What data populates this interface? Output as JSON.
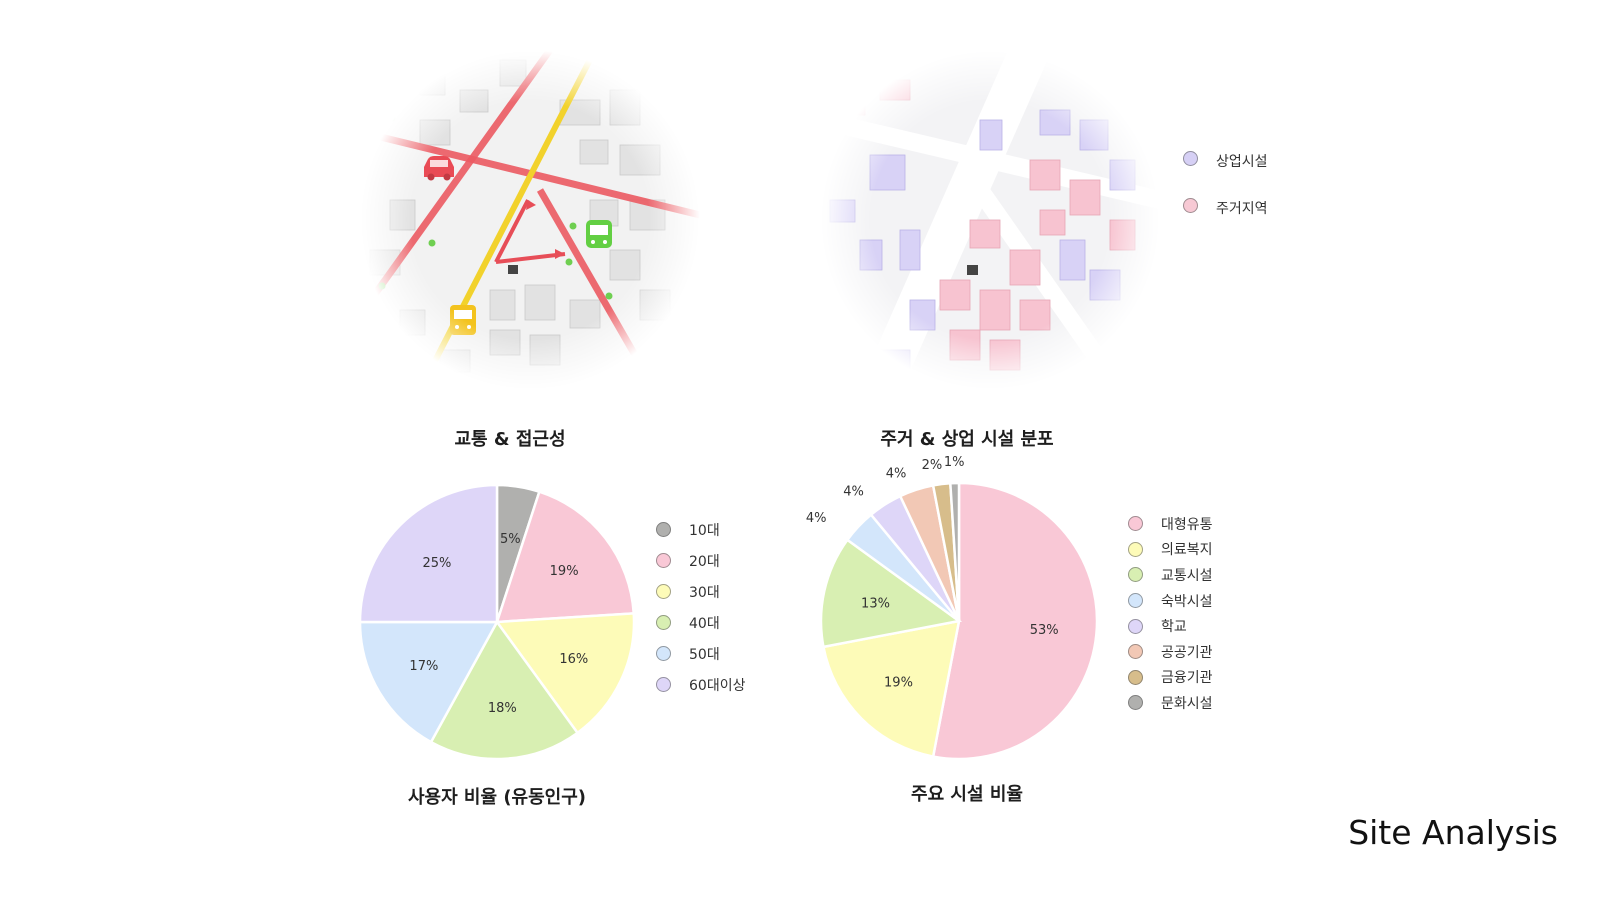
{
  "page_title": "Site Analysis",
  "maps": {
    "transport": {
      "caption": "교통 & 접근성",
      "icons": [
        "car-icon",
        "bus-icon",
        "train-icon",
        "route-arrow-icon"
      ]
    },
    "distribution": {
      "caption": "주거 & 상업 시설  분포",
      "legend": [
        {
          "label": "상업시설",
          "color": "#d6d0f5"
        },
        {
          "label": "주거지역",
          "color": "#f7c9d4"
        }
      ]
    }
  },
  "chart_data": [
    {
      "type": "pie",
      "title": "사용자 비율 (유동인구)",
      "categories": [
        "10대",
        "20대",
        "30대",
        "40대",
        "50대",
        "60대이상"
      ],
      "values": [
        5,
        19,
        16,
        18,
        17,
        25
      ],
      "labels": [
        "5%",
        "19%",
        "16%",
        "18%",
        "17%",
        "25%"
      ],
      "colors": [
        "#b0b0ae",
        "#f9c8d6",
        "#fdfbb8",
        "#d8efb2",
        "#d3e6fb",
        "#ded6f8"
      ],
      "legend_position": "right"
    },
    {
      "type": "pie",
      "title": "주요 시설 비율",
      "categories": [
        "대형유통",
        "의료복지",
        "교통시설",
        "숙박시설",
        "학교",
        "공공기관",
        "금융기관",
        "문화시설"
      ],
      "values": [
        53,
        19,
        13,
        4,
        4,
        4,
        2,
        1
      ],
      "labels": [
        "53%",
        "19%",
        "13%",
        "4%",
        "4%",
        "4%",
        "2%",
        "1%"
      ],
      "colors": [
        "#f9c8d6",
        "#fdfbb8",
        "#d8efb2",
        "#d3e6fb",
        "#ded6f8",
        "#f2c8b5",
        "#d7bd8b",
        "#b0b0ae"
      ],
      "legend_position": "right"
    }
  ]
}
